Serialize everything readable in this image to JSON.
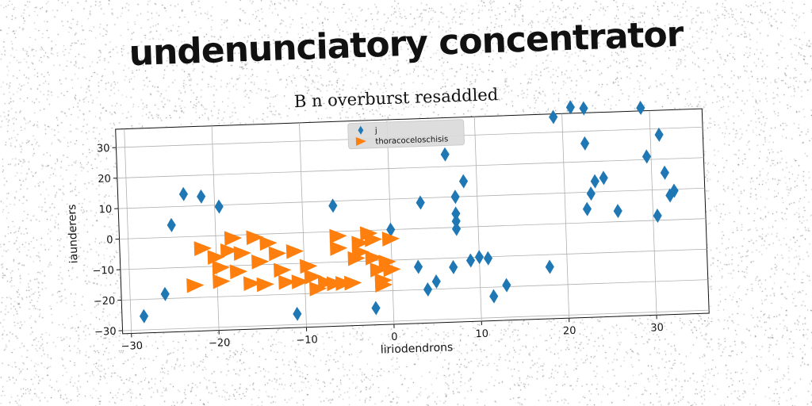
{
  "headline": "undenunciatory concentrator",
  "chart_data": {
    "type": "scatter",
    "title": "B n overburst resaddled",
    "xlabel": "liriodendrons",
    "ylabel": "iaunderers",
    "xlim": [
      -31,
      36
    ],
    "ylim": [
      -31,
      36
    ],
    "xticks": [
      -30,
      -20,
      -10,
      0,
      10,
      20,
      30
    ],
    "yticks": [
      -30,
      -20,
      -10,
      0,
      10,
      20,
      30
    ],
    "grid": true,
    "legend_position": "top-center",
    "series": [
      {
        "name": "j",
        "marker": "diamond",
        "color": "#1f77b4",
        "points": [
          [
            -28.5,
            -25.5
          ],
          [
            -26,
            -18.5
          ],
          [
            -25,
            4
          ],
          [
            -23.5,
            14
          ],
          [
            -21.5,
            13
          ],
          [
            -19.5,
            9.5
          ],
          [
            -11,
            -26.5
          ],
          [
            -6.5,
            8.5
          ],
          [
            -2,
            -25.5
          ],
          [
            0,
            0
          ],
          [
            3,
            -12.5
          ],
          [
            3.5,
            8.5
          ],
          [
            4,
            -20
          ],
          [
            5,
            -17.5
          ],
          [
            6.5,
            24
          ],
          [
            7,
            -13
          ],
          [
            7.5,
            10
          ],
          [
            7.5,
            4.5
          ],
          [
            7.5,
            2
          ],
          [
            7.5,
            -0.5
          ],
          [
            8.5,
            15
          ],
          [
            9,
            -11
          ],
          [
            10,
            -10
          ],
          [
            11,
            -10.5
          ],
          [
            11.5,
            -23
          ],
          [
            13,
            -19.5
          ],
          [
            18,
            -14
          ],
          [
            19,
            35
          ],
          [
            21,
            38
          ],
          [
            22.5,
            37.5
          ],
          [
            22.5,
            26
          ],
          [
            22.5,
            4.5
          ],
          [
            23,
            9.5
          ],
          [
            23.5,
            13.5
          ],
          [
            24.5,
            14.5
          ],
          [
            26,
            3.5
          ],
          [
            29,
            37
          ],
          [
            29.5,
            21
          ],
          [
            30.5,
            1.5
          ],
          [
            31,
            28
          ],
          [
            31.5,
            15.5
          ],
          [
            32,
            8
          ],
          [
            32.5,
            9.5
          ]
        ]
      },
      {
        "name": "thoracoceloschisis",
        "marker": "triangle-right",
        "color": "#ff7f0e",
        "points": [
          [
            -22.5,
            -16
          ],
          [
            -21.5,
            -4
          ],
          [
            -20,
            -7
          ],
          [
            -19.5,
            -10.5
          ],
          [
            -19.5,
            -15
          ],
          [
            -18.5,
            -5
          ],
          [
            -18,
            -1
          ],
          [
            -17.5,
            -12
          ],
          [
            -17,
            -6
          ],
          [
            -16,
            -16
          ],
          [
            -15.5,
            -1
          ],
          [
            -15,
            -9
          ],
          [
            -14,
            -3
          ],
          [
            -14.5,
            -16.5
          ],
          [
            -13,
            -6.5
          ],
          [
            -12.5,
            -12
          ],
          [
            -12,
            -16
          ],
          [
            -11,
            -6
          ],
          [
            -10.5,
            -16
          ],
          [
            -9.5,
            -11
          ],
          [
            -9,
            -14.5
          ],
          [
            -8.5,
            -18.5
          ],
          [
            -7.5,
            -16.5
          ],
          [
            -6.5,
            -17
          ],
          [
            -6,
            -1.5
          ],
          [
            -6,
            -5.5
          ],
          [
            -5.5,
            -17
          ],
          [
            -4.5,
            -17
          ],
          [
            -4,
            -9
          ],
          [
            -3.5,
            -7
          ],
          [
            -3.5,
            -4
          ],
          [
            -2.5,
            -1
          ],
          [
            -2,
            -3
          ],
          [
            -2,
            -9
          ],
          [
            -1.5,
            -13
          ],
          [
            -1,
            -18
          ],
          [
            -1,
            -16.5
          ],
          [
            -0.5,
            -10.5
          ],
          [
            0,
            -3
          ],
          [
            0,
            -13
          ]
        ]
      }
    ]
  }
}
